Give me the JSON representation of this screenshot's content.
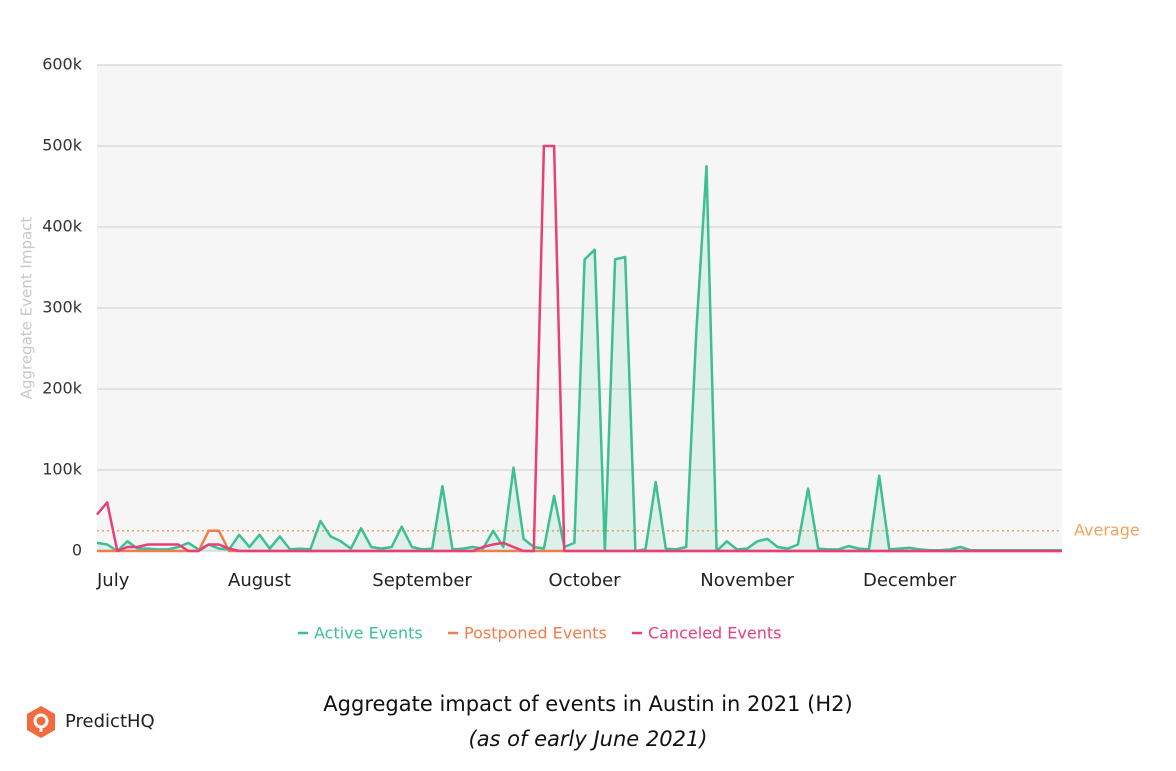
{
  "chart_data": {
    "type": "line",
    "y_label": "Aggregate Event Impact",
    "categories": [
      "July",
      null,
      null,
      null,
      null,
      null,
      null,
      null,
      null,
      null,
      null,
      null,
      null,
      null,
      null,
      null,
      "August",
      null,
      null,
      null,
      null,
      null,
      null,
      null,
      null,
      null,
      null,
      null,
      null,
      null,
      null,
      null,
      "September",
      null,
      null,
      null,
      null,
      null,
      null,
      null,
      null,
      null,
      null,
      null,
      null,
      null,
      null,
      null,
      "October",
      null,
      null,
      null,
      null,
      null,
      null,
      null,
      null,
      null,
      null,
      null,
      null,
      null,
      null,
      null,
      "November",
      null,
      null,
      null,
      null,
      null,
      null,
      null,
      null,
      null,
      null,
      null,
      null,
      null,
      null,
      null,
      "December",
      null,
      null,
      null,
      null,
      null,
      null,
      null,
      null,
      null,
      null,
      null,
      null,
      null,
      null,
      null
    ],
    "series": [
      {
        "name": "Active Events",
        "color": "#3dbf95",
        "fill": true,
        "values": [
          10000,
          8000,
          0,
          12000,
          3000,
          3000,
          2000,
          2000,
          5000,
          10000,
          2000,
          8000,
          3000,
          2000,
          20000,
          5000,
          20000,
          3000,
          18000,
          2000,
          3000,
          2000,
          37000,
          18000,
          12000,
          3000,
          28000,
          5000,
          3000,
          5000,
          30000,
          5000,
          2000,
          3000,
          80000,
          2000,
          3000,
          5000,
          3000,
          25000,
          5000,
          103000,
          15000,
          5000,
          3000,
          68000,
          5000,
          10000,
          360000,
          372000,
          0,
          360000,
          363000,
          0,
          2000,
          85000,
          3000,
          2000,
          5000,
          270000,
          475000,
          0,
          12000,
          2000,
          3000,
          12000,
          15000,
          5000,
          3000,
          8000,
          77000,
          3000,
          2000,
          2000,
          6000,
          3000,
          2000,
          93000,
          2000,
          3000,
          4000,
          2000,
          1000,
          1000,
          2000,
          5000,
          1000,
          1000,
          1000,
          1000,
          1000,
          1000,
          1000,
          1000,
          1000,
          1000
        ]
      },
      {
        "name": "Postponed Events",
        "color": "#f07d4a",
        "values": [
          0,
          0,
          0,
          0,
          0,
          0,
          0,
          0,
          0,
          0,
          0,
          25000,
          25000,
          0,
          0,
          0,
          0,
          0,
          0,
          0,
          0,
          0,
          0,
          0,
          0,
          0,
          0,
          0,
          0,
          0,
          0,
          0,
          0,
          0,
          0,
          0,
          0,
          0,
          0,
          0,
          0,
          0,
          0,
          0,
          0,
          0,
          0,
          0,
          0,
          0,
          0,
          0,
          0,
          0,
          0,
          0,
          0,
          0,
          0,
          0,
          0,
          0,
          0,
          0,
          0,
          0,
          0,
          0,
          0,
          0,
          0,
          0,
          0,
          0,
          0,
          0,
          0,
          0,
          0,
          0,
          0,
          0,
          0,
          0,
          0,
          0,
          0,
          0,
          0,
          0,
          0,
          0,
          0,
          0,
          0,
          0
        ]
      },
      {
        "name": "Canceled Events",
        "color": "#e83e7a",
        "values": [
          45000,
          60000,
          0,
          5000,
          5000,
          8000,
          8000,
          8000,
          8000,
          0,
          0,
          8000,
          8000,
          3000,
          0,
          0,
          0,
          0,
          0,
          0,
          0,
          0,
          0,
          0,
          0,
          0,
          0,
          0,
          0,
          0,
          0,
          0,
          0,
          0,
          0,
          0,
          0,
          0,
          5000,
          8000,
          10000,
          5000,
          0,
          0,
          500000,
          500000,
          0,
          0,
          0,
          0,
          0,
          0,
          0,
          0,
          0,
          0,
          0,
          0,
          0,
          0,
          0,
          0,
          0,
          0,
          0,
          0,
          0,
          0,
          0,
          0,
          0,
          0,
          0,
          0,
          0,
          0,
          0,
          0,
          0,
          0,
          0,
          0,
          0,
          0,
          0,
          0,
          0,
          0,
          0,
          0,
          0,
          0,
          0,
          0,
          0,
          0
        ]
      }
    ],
    "average": {
      "label": "Average",
      "value": 25000,
      "color": "#f5a25c"
    },
    "ylim": [
      0,
      600000
    ],
    "yticks": [
      0,
      {
        "value": 100000,
        "label": "100k"
      },
      {
        "value": 200000,
        "label": "200k"
      },
      {
        "value": 300000,
        "label": "300k"
      },
      {
        "value": 400000,
        "label": "400k"
      },
      {
        "value": 500000,
        "label": "500k"
      },
      {
        "value": 600000,
        "label": "600k"
      }
    ],
    "grid": true
  },
  "caption": {
    "title": "Aggregate impact of events in Austin in 2021 (H2)",
    "subtitle": "(as of early June 2021)"
  },
  "logo": "PredictHQ"
}
